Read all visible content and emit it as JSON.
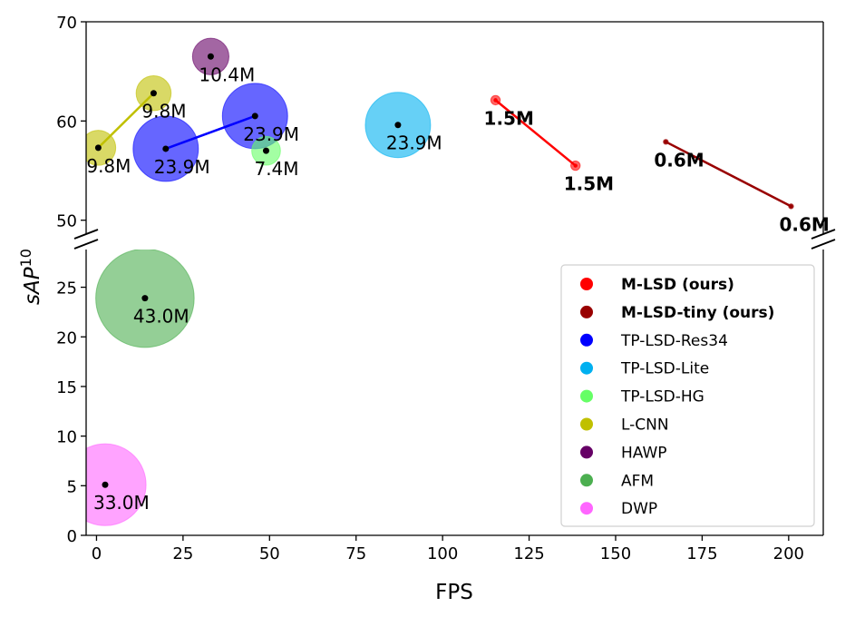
{
  "chart_data": {
    "type": "scatter",
    "title": "",
    "xlabel": "FPS",
    "ylabel": "sAP",
    "ylabel_superscript": "10",
    "xlim": [
      -3,
      210
    ],
    "ylim_top_panel": [
      48.6,
      70
    ],
    "ylim_bottom_panel": [
      0,
      28.8
    ],
    "broken_y_axis": true,
    "grid": false,
    "legend_placement": "lower-right",
    "x_ticks": [
      "0",
      "25",
      "50",
      "75",
      "100",
      "125",
      "150",
      "175",
      "200"
    ],
    "x_tick_values": [
      0,
      25,
      50,
      75,
      100,
      125,
      150,
      175,
      200
    ],
    "y_ticks_top": [
      "50",
      "60",
      "70"
    ],
    "y_tick_values_top": [
      50,
      60,
      70
    ],
    "y_ticks_bottom": [
      "0",
      "5",
      "10",
      "15",
      "20",
      "25"
    ],
    "y_tick_values_bottom": [
      0,
      5,
      10,
      15,
      20,
      25
    ],
    "series": [
      {
        "name": "M-LSD (ours)",
        "bold": true,
        "color": "#ff0000",
        "connected": true,
        "points": [
          {
            "x": 115.3,
            "y": 62.1,
            "params": 1.5,
            "label": "1.5M"
          },
          {
            "x": 138.4,
            "y": 55.5,
            "params": 1.5,
            "label": "1.5M"
          }
        ]
      },
      {
        "name": "M-LSD-tiny (ours)",
        "bold": true,
        "color": "#990000",
        "connected": true,
        "points": [
          {
            "x": 164.5,
            "y": 57.9,
            "params": 0.6,
            "label": "0.6M"
          },
          {
            "x": 200.7,
            "y": 51.4,
            "params": 0.6,
            "label": "0.6M"
          }
        ]
      },
      {
        "name": "TP-LSD-Res34",
        "bold": false,
        "color": "#0000ff",
        "connected": true,
        "points": [
          {
            "x": 20.0,
            "y": 57.2,
            "params": 23.9,
            "label": "23.9M"
          },
          {
            "x": 45.8,
            "y": 60.5,
            "params": 23.9,
            "label": "23.9M"
          }
        ]
      },
      {
        "name": "TP-LSD-Lite",
        "bold": false,
        "color": "#00b0f0",
        "connected": false,
        "points": [
          {
            "x": 87.1,
            "y": 59.6,
            "params": 23.9,
            "label": "23.9M"
          }
        ]
      },
      {
        "name": "TP-LSD-HG",
        "bold": false,
        "color": "#66ff66",
        "connected": false,
        "points": [
          {
            "x": 49.0,
            "y": 57.0,
            "params": 7.4,
            "label": "7.4M"
          }
        ]
      },
      {
        "name": "L-CNN",
        "bold": false,
        "color": "#c0c000",
        "connected": true,
        "points": [
          {
            "x": 0.5,
            "y": 57.3,
            "params": 9.8,
            "label": "9.8M"
          },
          {
            "x": 16.5,
            "y": 62.8,
            "params": 9.8,
            "label": "9.8M"
          }
        ]
      },
      {
        "name": "HAWP",
        "bold": false,
        "color": "#660066",
        "connected": false,
        "points": [
          {
            "x": 33.0,
            "y": 66.5,
            "params": 10.4,
            "label": "10.4M"
          }
        ]
      },
      {
        "name": "AFM",
        "bold": false,
        "color": "#4caf50",
        "connected": false,
        "points": [
          {
            "x": 14.0,
            "y": 23.9,
            "params": 43.0,
            "label": "43.0M"
          }
        ]
      },
      {
        "name": "DWP",
        "bold": false,
        "color": "#ff66ff",
        "connected": false,
        "points": [
          {
            "x": 2.5,
            "y": 5.1,
            "params": 33.0,
            "label": "33.0M"
          }
        ]
      }
    ]
  }
}
